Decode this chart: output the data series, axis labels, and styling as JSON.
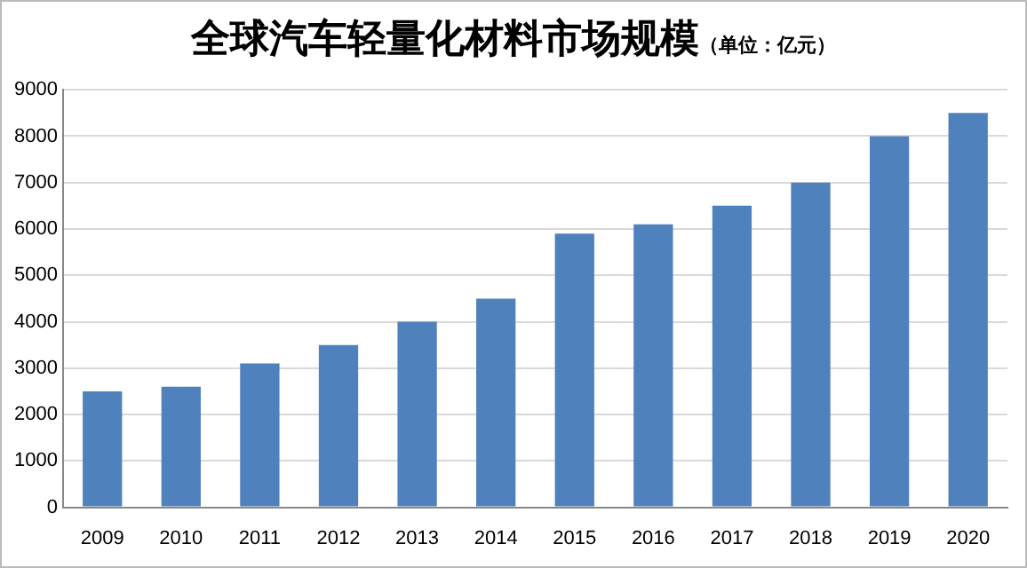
{
  "chart_data": {
    "type": "bar",
    "title": "全球汽车轻量化材料市场规模",
    "subtitle": "（单位：亿元）",
    "categories": [
      "2009",
      "2010",
      "2011",
      "2012",
      "2013",
      "2014",
      "2015",
      "2016",
      "2017",
      "2018",
      "2019",
      "2020"
    ],
    "values": [
      2500,
      2600,
      3100,
      3500,
      4000,
      4500,
      5900,
      6100,
      6500,
      7000,
      8000,
      8500
    ],
    "color": "#4f81bd",
    "ylim": [
      0,
      9000
    ],
    "yticks": [
      0,
      1000,
      2000,
      3000,
      4000,
      5000,
      6000,
      7000,
      8000,
      9000
    ],
    "grid": "y",
    "legend": false
  }
}
